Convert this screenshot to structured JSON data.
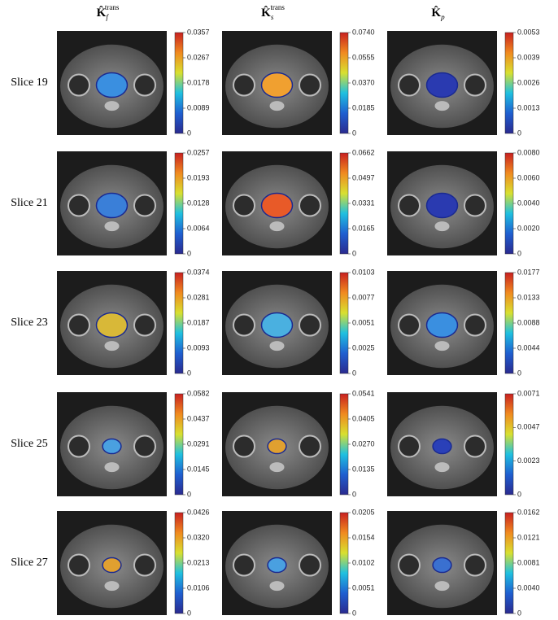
{
  "header": {
    "columns": [
      {
        "base": "K̂",
        "sub": "f",
        "sup": "trans"
      },
      {
        "base": "K̂",
        "sub": "s",
        "sup": "trans"
      },
      {
        "base": "K̂",
        "sub": "p"
      }
    ]
  },
  "rows": [
    {
      "label": "Slice 19",
      "cells": [
        {
          "ticks": [
            "0.0357",
            "0.0267",
            "0.0178",
            "0.0089",
            "0"
          ]
        },
        {
          "ticks": [
            "0.0740",
            "0.0555",
            "0.0370",
            "0.0185",
            "0"
          ]
        },
        {
          "ticks": [
            "0.0053",
            "0.0039",
            "0.0026",
            "0.0013",
            "0"
          ]
        }
      ]
    },
    {
      "label": "Slice 21",
      "cells": [
        {
          "ticks": [
            "0.0257",
            "0.0193",
            "0.0128",
            "0.0064",
            "0"
          ]
        },
        {
          "ticks": [
            "0.0662",
            "0.0497",
            "0.0331",
            "0.0165",
            "0"
          ]
        },
        {
          "ticks": [
            "0.0080",
            "0.0060",
            "0.0040",
            "0.0020",
            "0"
          ]
        }
      ]
    },
    {
      "label": "Slice 23",
      "cells": [
        {
          "ticks": [
            "0.0374",
            "0.0281",
            "0.0187",
            "0.0093",
            "0"
          ]
        },
        {
          "ticks": [
            "0.0103",
            "0.0077",
            "0.0051",
            "0.0025",
            "0"
          ]
        },
        {
          "ticks": [
            "0.0177",
            "0.0133",
            "0.0088",
            "0.0044",
            "0"
          ]
        }
      ]
    },
    {
      "label": "Slice 25",
      "cells": [
        {
          "ticks": [
            "0.0582",
            "0.0437",
            "0.0291",
            "0.0145",
            "0"
          ]
        },
        {
          "ticks": [
            "0.0541",
            "0.0405",
            "0.0270",
            "0.0135",
            "0"
          ]
        },
        {
          "ticks": [
            "0.0071",
            "0.0047",
            "0.0023",
            "0"
          ]
        }
      ]
    },
    {
      "label": "Slice 27",
      "cells": [
        {
          "ticks": [
            "0.0426",
            "0.0320",
            "0.0213",
            "0.0106",
            "0"
          ]
        },
        {
          "ticks": [
            "0.0205",
            "0.0154",
            "0.0102",
            "0.0051",
            "0"
          ]
        },
        {
          "ticks": [
            "0.0162",
            "0.0121",
            "0.0081",
            "0.0040",
            "0"
          ]
        }
      ]
    }
  ]
}
